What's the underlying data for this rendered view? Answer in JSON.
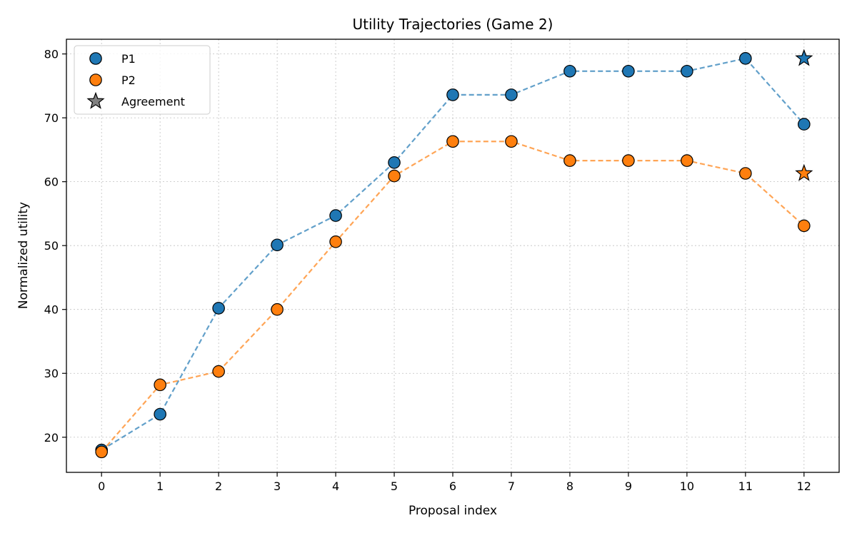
{
  "chart_data": {
    "type": "line",
    "title": "Utility Trajectories (Game 2)",
    "xlabel": "Proposal index",
    "ylabel": "Normalized utility",
    "x": [
      0,
      1,
      2,
      3,
      4,
      5,
      6,
      7,
      8,
      9,
      10,
      11,
      12
    ],
    "xticks": [
      "0",
      "1",
      "2",
      "3",
      "4",
      "5",
      "6",
      "7",
      "8",
      "9",
      "10",
      "11",
      "12"
    ],
    "xlim": [
      -0.6,
      12.6
    ],
    "yticks": [
      20,
      30,
      40,
      50,
      60,
      70,
      80
    ],
    "ylim": [
      14.5,
      82.3
    ],
    "grid": true,
    "line_style": "dashed",
    "legend_placement": "top-left",
    "series": [
      {
        "name": "P1",
        "color": "#1f77b4",
        "values": [
          18.0,
          23.6,
          40.2,
          50.1,
          54.7,
          63.0,
          73.6,
          73.6,
          77.3,
          77.3,
          77.3,
          79.3,
          69.0
        ]
      },
      {
        "name": "P2",
        "color": "#ff7f0e",
        "values": [
          17.7,
          28.2,
          30.3,
          40.0,
          50.6,
          60.9,
          66.3,
          66.3,
          63.3,
          63.3,
          63.3,
          61.3,
          53.1
        ]
      }
    ],
    "agreement": {
      "name": "Agreement",
      "legend_color": "#808080",
      "marker": "star",
      "x": 12,
      "points": [
        {
          "series": "P1",
          "y": 79.3,
          "color": "#1f77b4"
        },
        {
          "series": "P2",
          "y": 61.3,
          "color": "#ff7f0e"
        }
      ]
    }
  }
}
